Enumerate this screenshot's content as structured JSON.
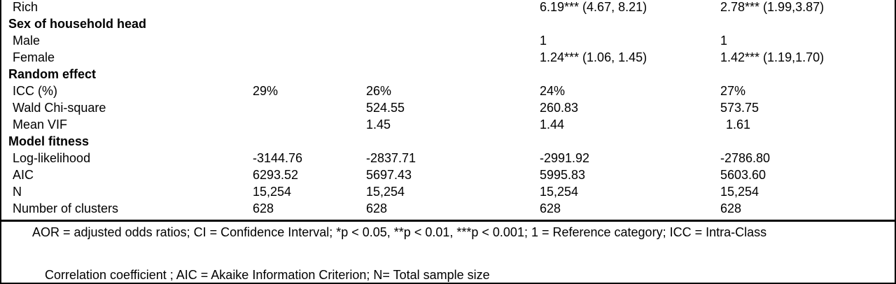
{
  "rows": [
    {
      "label": "Rich",
      "v1": "",
      "v2": "",
      "v3": "6.19*** (4.67, 8.21)",
      "v4": "2.78*** (1.99,3.87)"
    },
    {
      "label": "Sex of household head"
    },
    {
      "label": "Male",
      "v1": "",
      "v2": "",
      "v3": "1",
      "v4": "1"
    },
    {
      "label": "Female",
      "v1": "",
      "v2": "",
      "v3": "1.24*** (1.06, 1.45)",
      "v4": "1.42*** (1.19,1.70)"
    },
    {
      "label": "Random effect"
    },
    {
      "label": "ICC (%)",
      "v1": "29%",
      "v2": "26%",
      "v3": "24%",
      "v4": "27%"
    },
    {
      "label": "Wald Chi-square",
      "v1": "",
      "v2": "524.55",
      "v3": "260.83",
      "v4": "573.75"
    },
    {
      "label": "Mean VIF",
      "v1": "",
      "v2": "1.45",
      "v3": "1.44",
      "v4": "1.61"
    },
    {
      "label": "Model fitness"
    },
    {
      "label": "Log-likelihood",
      "v1": "-3144.76",
      "v2": "-2837.71",
      "v3": "-2991.92",
      "v4": "-2786.80"
    },
    {
      "label": "AIC",
      "v1": "6293.52",
      "v2": "5697.43",
      "v3": "5995.83",
      "v4": "5603.60"
    },
    {
      "label": "N",
      "v1": "15,254",
      "v2": "15,254",
      "v3": "15,254",
      "v4": "15,254"
    },
    {
      "label": "Number of clusters",
      "v1": "628",
      "v2": "628",
      "v3": "628",
      "v4": "628"
    }
  ],
  "footnote": {
    "line1": "AOR = adjusted odds ratios; CI = Confidence Interval; *p < 0.05, **p < 0.01, ***p < 0.001; 1 = Reference category; ICC = Intra-Class",
    "line2": "Correlation coefficient ; AIC = Akaike Information Criterion; N= Total sample size"
  }
}
